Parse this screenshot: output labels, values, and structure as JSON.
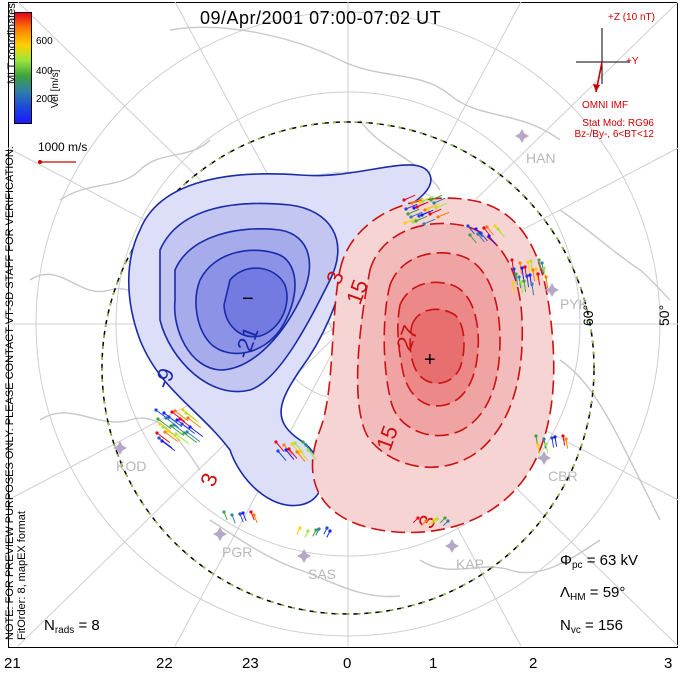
{
  "title": "09/Apr/2001 07:00-07:02 UT",
  "side_note": {
    "line1": "NOTE: FOR PREVIEW PURPOSES ONLY. PLEASE CONTACT VT-SD STAFF FOR VERIFICATION.",
    "line2": "FitOrder: 8, mapEX format"
  },
  "colorbar": {
    "title": "Vel [m/s]",
    "coords": "MLT coordinates",
    "ticks": [
      "600",
      "400",
      "200"
    ],
    "colors": [
      "#e8001e",
      "#ff7b00",
      "#ffcf00",
      "#9be63c",
      "#3ea23e",
      "#2f7fa8",
      "#1e46dc",
      "#1a1aff"
    ]
  },
  "velocity_reference": "1000 m/s",
  "imf": {
    "z_label": "+Z (10 nT)",
    "y_label": "+Y",
    "source": "OMNI IMF",
    "stat_model": "Stat Mod: RG96",
    "stat_cond": "Bz-/By-, 6<BT<12"
  },
  "stats": {
    "phi_symbol": "Φ",
    "phi_sub": "pc",
    "phi_value": "= 63 kV",
    "lambda_symbol": "Λ",
    "lambda_sub": "HM",
    "lambda_value": "= 59°",
    "nvc_symbol": "N",
    "nvc_sub": "vc",
    "nvc_value": "= 156"
  },
  "nrads": {
    "symbol": "N",
    "sub": "rads",
    "value": "= 8"
  },
  "mlt_axis": [
    "21",
    "22",
    "23",
    "0",
    "1",
    "2",
    "3"
  ],
  "latitudes": [
    "60°",
    "50°"
  ],
  "stations": [
    "HAN",
    "PYK",
    "CBR",
    "KAP",
    "SAS",
    "PGR",
    "KOD"
  ],
  "contours": {
    "negative_labels": [
      "-21",
      "-9",
      "3"
    ],
    "positive_labels": [
      "3",
      "15",
      "27",
      "15",
      "3"
    ],
    "min_marker": "−",
    "max_marker": "+"
  },
  "map_colors": {
    "negative_fill": "#6f78e6",
    "positive_fill": "#ee5a5a",
    "negative_line": "#1a2aa8",
    "positive_line": "#cc1111",
    "coastline": "#c8c8c8",
    "station": "#b8a8c8"
  }
}
